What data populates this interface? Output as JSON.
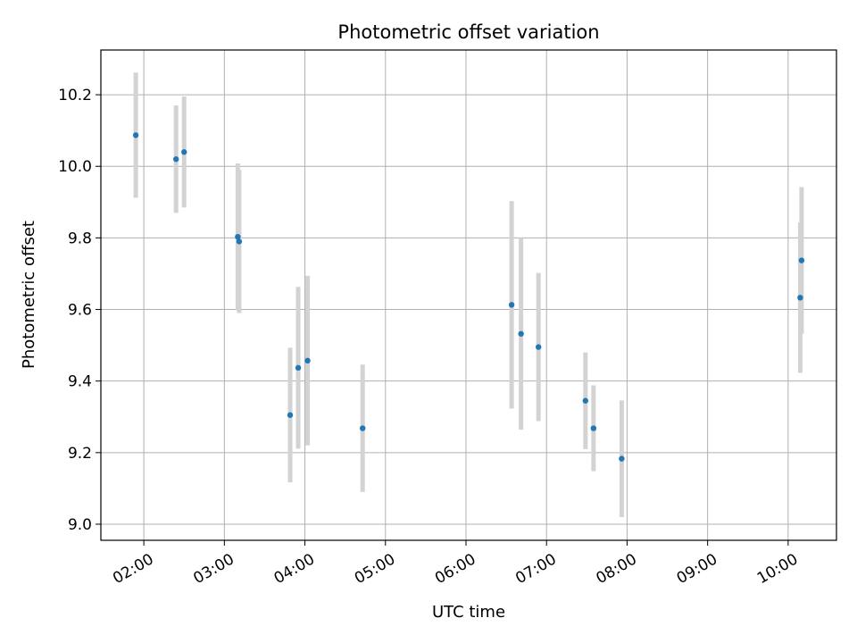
{
  "chart_data": {
    "type": "scatter",
    "title": "Photometric offset variation",
    "xlabel": "UTC time",
    "ylabel": "Photometric offset",
    "x_ticks": [
      "02:00",
      "03:00",
      "04:00",
      "05:00",
      "06:00",
      "07:00",
      "08:00",
      "09:00",
      "10:00"
    ],
    "y_ticks": [
      "9.0",
      "9.2",
      "9.4",
      "9.6",
      "9.8",
      "10.0",
      "10.2"
    ],
    "xlim": [
      "01:28",
      "10:36"
    ],
    "ylim": [
      8.955,
      10.325
    ],
    "grid": true,
    "point_color": "#1f77b4",
    "errorbar_color": "#d3d3d3",
    "points": [
      {
        "t": "01:54",
        "y": 10.087,
        "err": 0.175
      },
      {
        "t": "02:24",
        "y": 10.02,
        "err": 0.15
      },
      {
        "t": "02:30",
        "y": 10.04,
        "err": 0.155
      },
      {
        "t": "03:10",
        "y": 9.803,
        "err": 0.205
      },
      {
        "t": "03:11",
        "y": 9.79,
        "err": 0.2
      },
      {
        "t": "03:49",
        "y": 9.305,
        "err": 0.188
      },
      {
        "t": "03:55",
        "y": 9.437,
        "err": 0.226
      },
      {
        "t": "04:02",
        "y": 9.457,
        "err": 0.237
      },
      {
        "t": "04:43",
        "y": 9.268,
        "err": 0.178
      },
      {
        "t": "06:34",
        "y": 9.613,
        "err": 0.29
      },
      {
        "t": "06:41",
        "y": 9.532,
        "err": 0.268
      },
      {
        "t": "06:54",
        "y": 9.495,
        "err": 0.207
      },
      {
        "t": "07:29",
        "y": 9.345,
        "err": 0.135
      },
      {
        "t": "07:35",
        "y": 9.268,
        "err": 0.12
      },
      {
        "t": "07:56",
        "y": 9.183,
        "err": 0.163
      },
      {
        "t": "10:09",
        "y": 9.633,
        "err": 0.21
      },
      {
        "t": "10:10",
        "y": 9.737,
        "err": 0.205
      }
    ]
  }
}
